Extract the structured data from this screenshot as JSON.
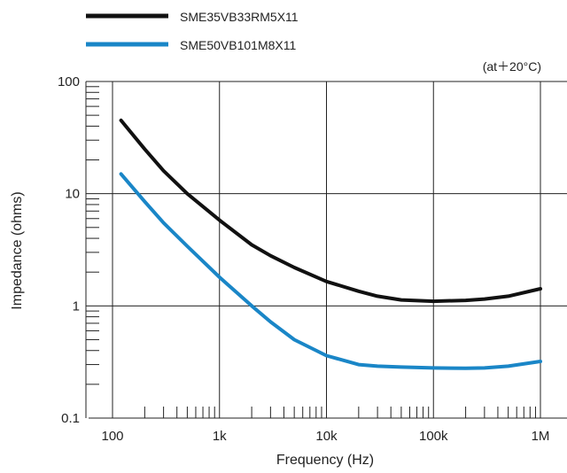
{
  "chart_data": {
    "type": "line",
    "xscale": "log",
    "yscale": "log",
    "xlabel": "Frequency (Hz)",
    "ylabel": "Impedance (ohms)",
    "annotation": "(at＋20°C)",
    "xlim": [
      100,
      1000000
    ],
    "ylim": [
      0.1,
      100
    ],
    "x_ticks": [
      {
        "value": 100,
        "label": "100"
      },
      {
        "value": 1000,
        "label": "1k"
      },
      {
        "value": 10000,
        "label": "10k"
      },
      {
        "value": 100000,
        "label": "100k"
      },
      {
        "value": 1000000,
        "label": "1M"
      }
    ],
    "y_ticks": [
      {
        "value": 0.1,
        "label": "0.1"
      },
      {
        "value": 1,
        "label": "1"
      },
      {
        "value": 10,
        "label": "10"
      },
      {
        "value": 100,
        "label": "100"
      }
    ],
    "grid": true,
    "legend_position": "top-left",
    "series": [
      {
        "name": "SME35VB33RM5X11",
        "color": "#111111",
        "x": [
          120,
          200,
          300,
          500,
          1000,
          2000,
          3000,
          5000,
          10000,
          20000,
          30000,
          50000,
          100000,
          200000,
          300000,
          500000,
          1000000
        ],
        "y": [
          45,
          25,
          16,
          10,
          5.8,
          3.5,
          2.8,
          2.2,
          1.65,
          1.35,
          1.22,
          1.13,
          1.1,
          1.12,
          1.15,
          1.22,
          1.42
        ]
      },
      {
        "name": "SME50VB101M8X11",
        "color": "#1a86c7",
        "x": [
          120,
          200,
          300,
          500,
          1000,
          2000,
          3000,
          5000,
          10000,
          20000,
          30000,
          50000,
          100000,
          200000,
          300000,
          500000,
          1000000
        ],
        "y": [
          15,
          8.5,
          5.5,
          3.4,
          1.8,
          1.0,
          0.72,
          0.5,
          0.36,
          0.3,
          0.29,
          0.285,
          0.28,
          0.278,
          0.28,
          0.29,
          0.32
        ]
      }
    ]
  }
}
